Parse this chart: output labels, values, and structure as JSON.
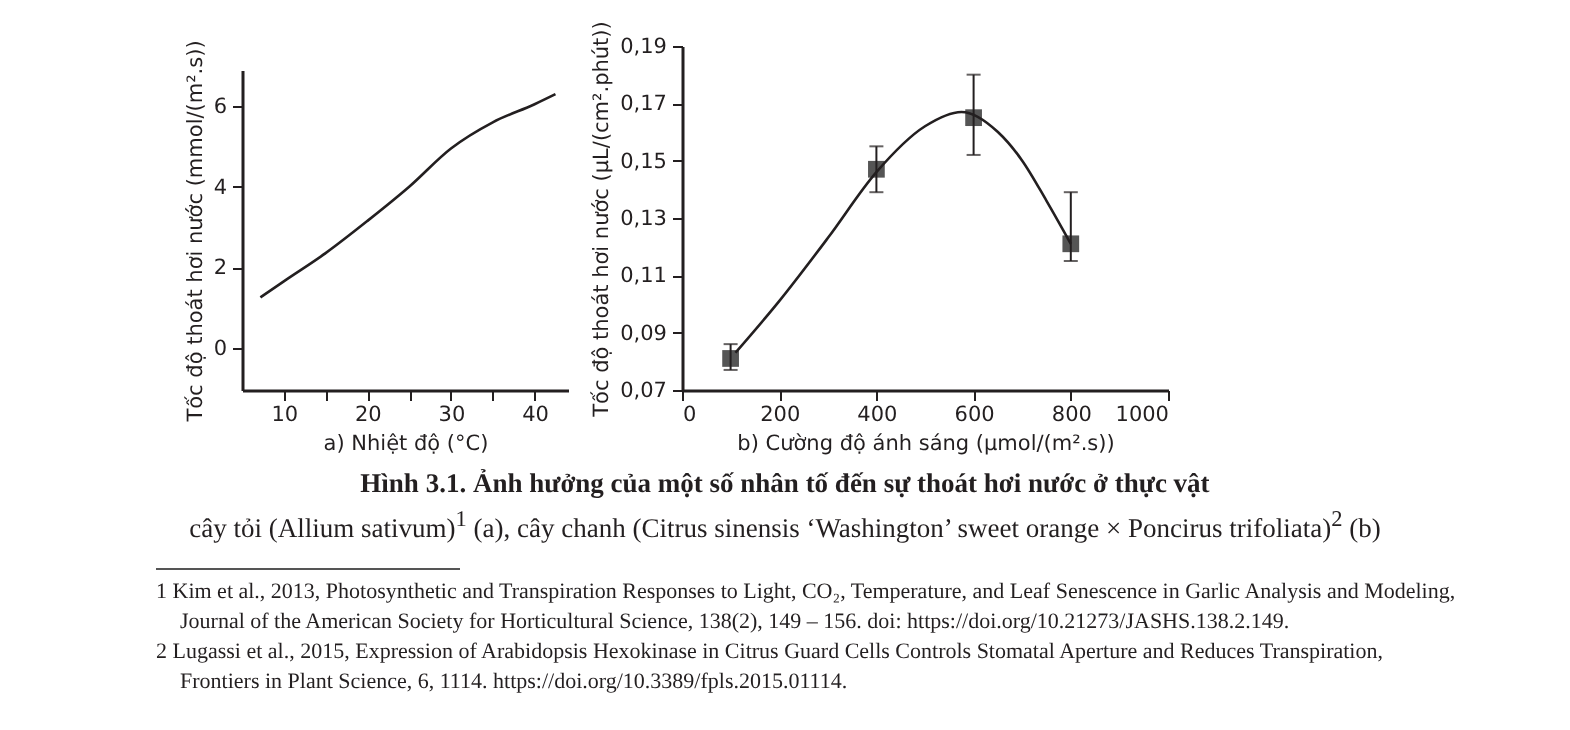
{
  "chart_data": [
    {
      "type": "line",
      "xlabel": "a) Nhiệt độ (°C)",
      "ylabel": "Tốc độ thoát hơi nước (mmol/(m².s))",
      "x": [
        7.2,
        10,
        15,
        20,
        25,
        30,
        35,
        40,
        42.5
      ],
      "values": [
        1.25,
        1.65,
        2.35,
        3.15,
        4.0,
        4.95,
        5.6,
        6.05,
        6.3
      ],
      "color": "#231f20",
      "xlim": [
        5,
        44
      ],
      "xticks": [
        10,
        {
          "value": 15,
          "label": null
        },
        20,
        {
          "value": 25,
          "label": null
        },
        30,
        {
          "value": 35,
          "label": null
        },
        40
      ],
      "ylim": [
        -1.05,
        6.9
      ],
      "yticks": [
        0,
        2,
        4,
        6
      ],
      "grid": false,
      "annotations": [
        "Hình 3.1. Ảnh hưởng của một số nhân tố đến sự thoát hơi nước ở thực vật",
        "cây tỏi (Allium sativum)$^{1}$ (a), cây chanh (Citrus sinensis ‘Washington’ sweet orange × Poncirus trifoliata)$^{2}$ (b)",
        "1 Kim et al., 2013, Photosynthetic and Transpiration Responses to Light, CO₂, Temperature, and Leaf Senescence in Garlic Analysis and Modeling, Journal of the American Society for Horticultural Science, 138(2), 149 – 156. doi: https://doi.org/10.21273/JASHS.138.2.149.",
        "2 Lugassi et al., 2015, Expression of Arabidopsis Hexokinase in Citrus Guard Cells Controls Stomatal Aperture and Reduces Transpiration, Frontiers in Plant Science, 6, 1114. https://doi.org/10.3389/fpls.2015.01114."
      ]
    },
    {
      "type": "scatter",
      "xlabel": "b) Cường độ ánh sáng (µmol/(m².s))",
      "ylabel": "Tốc độ thoát hơi nước (µL/(cm².phút))",
      "series": [
        {
          "marker": "square",
          "color": "#555555",
          "x": [
            100,
            400,
            600,
            800
          ],
          "values": [
            0.081,
            0.147,
            0.165,
            0.121
          ],
          "errors": [
            [
              0.077,
              0.086
            ],
            [
              0.139,
              0.155
            ],
            [
              0.152,
              0.18
            ],
            [
              0.115,
              0.139
            ]
          ]
        },
        {
          "type": "line",
          "color": "#231f20",
          "x": [
            110,
            200,
            300,
            400,
            500,
            575,
            650,
            700,
            750,
            800
          ],
          "values": [
            0.083,
            0.101,
            0.123,
            0.146,
            0.162,
            0.167,
            0.16,
            0.15,
            0.136,
            0.121
          ]
        }
      ],
      "xlim": [
        0,
        1000
      ],
      "xticks": [
        0,
        200,
        400,
        600,
        800,
        1000
      ],
      "ylim": [
        0.07,
        0.19
      ],
      "yticks": [
        {
          "value": 0.07,
          "label": "0,07"
        },
        {
          "value": 0.09,
          "label": "0,09"
        },
        {
          "value": 0.11,
          "label": "0,11"
        },
        {
          "value": 0.13,
          "label": "0,13"
        },
        {
          "value": 0.15,
          "label": "0,15"
        },
        {
          "value": 0.17,
          "label": "0,17"
        },
        {
          "value": 0.19,
          "label": "0,19"
        }
      ],
      "grid": false
    }
  ]
}
